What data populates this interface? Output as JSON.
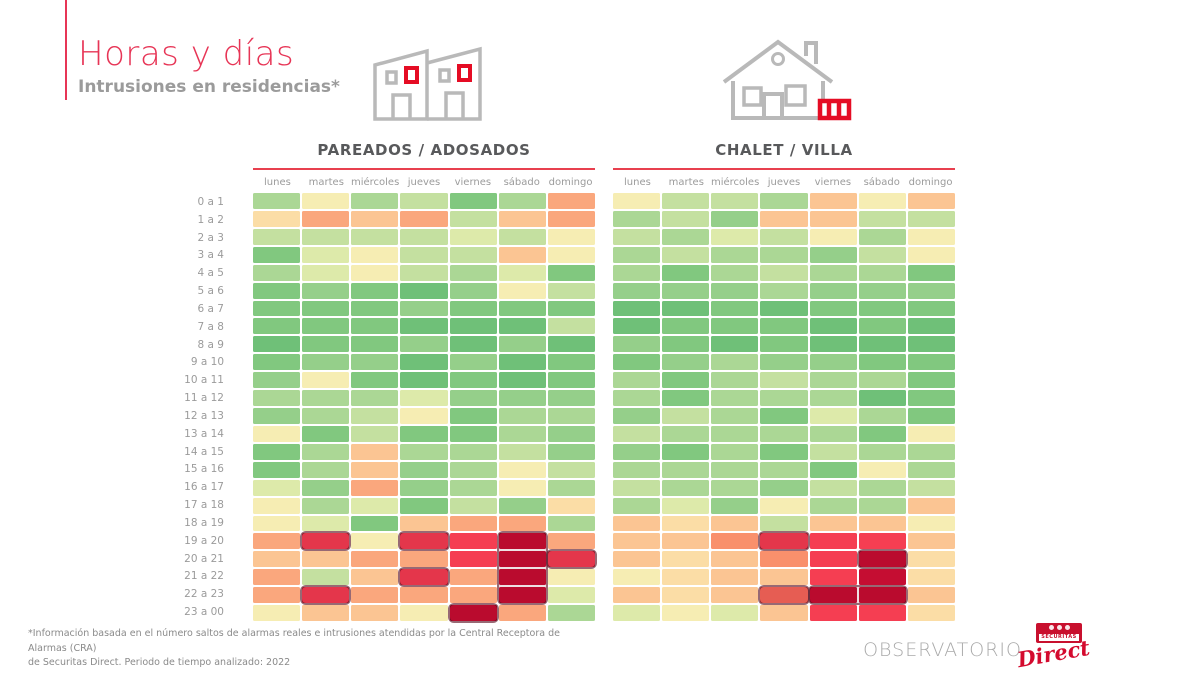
{
  "page": {
    "title": "Horas y días",
    "subtitle": "Intrusiones en residencias*",
    "footnote_line1": "*Información basada en el número saltos de alarmas reales e intrusiones atendidas por la Central Receptora de Alarmas (CRA)",
    "footnote_line2": "de Securitas Direct. Periodo de tiempo analizado: 2022",
    "brand": {
      "observatorio": "OBSERVATORIO",
      "securitas": "SECURITAS",
      "direct": "Direct"
    }
  },
  "colors": {
    "accent_pink_red": "#e73556",
    "rule_red": "#e8404f",
    "icon_red": "#e50c24",
    "icon_gray": "#b9b9b9",
    "chart_title_gray": "#58595b",
    "label_gray": "#9b9b9b",
    "footnote_gray": "#8a8a8a",
    "brand_red": "#c8102e"
  },
  "chart_data": [
    {
      "type": "heatmap",
      "title": "PAREADOS / ADOSADOS",
      "x_labels": [
        "lunes",
        "martes",
        "miércoles",
        "jueves",
        "viernes",
        "sábado",
        "domingo"
      ],
      "y_labels": [
        "0 a 1",
        "1 a 2",
        "2 a 3",
        "3 a 4",
        "4 a 5",
        "5 a 6",
        "6 a 7",
        "7 a 8",
        "8 a 9",
        "9 a 10",
        "10 a 11",
        "11 a 12",
        "12 a 13",
        "13 a 14",
        "14 a 15",
        "15 a 16",
        "16 a 17",
        "17 a 18",
        "18 a 19",
        "19 a 20",
        "20 a 21",
        "21 a 22",
        "22 a 23",
        "23 a 00"
      ],
      "palette": [
        "#6fc078",
        "#81c87f",
        "#95cf8a",
        "#abd795",
        "#c4e0a0",
        "#ddeaaa",
        "#f6edb3",
        "#fbdda6",
        "#fbc593",
        "#faa77d",
        "#f9906c",
        "#f76a5c",
        "#f53e52",
        "#c50d32"
      ],
      "palette_note": "values are palette indices: 0 = lowest intrusion intensity (green) … 13 = highest (dark red)",
      "values": [
        [
          3,
          6,
          3,
          4,
          1,
          3,
          9
        ],
        [
          7,
          9,
          8,
          9,
          4,
          8,
          9
        ],
        [
          4,
          4,
          4,
          4,
          5,
          4,
          6
        ],
        [
          1,
          5,
          6,
          4,
          4,
          8,
          6
        ],
        [
          3,
          5,
          6,
          4,
          3,
          5,
          1
        ],
        [
          1,
          2,
          1,
          0,
          2,
          6,
          4
        ],
        [
          1,
          1,
          1,
          2,
          1,
          1,
          1
        ],
        [
          1,
          1,
          1,
          0,
          0,
          0,
          4
        ],
        [
          0,
          1,
          1,
          2,
          0,
          2,
          0
        ],
        [
          1,
          2,
          2,
          0,
          2,
          0,
          1
        ],
        [
          2,
          6,
          1,
          0,
          1,
          0,
          1
        ],
        [
          3,
          3,
          3,
          5,
          2,
          2,
          2
        ],
        [
          2,
          3,
          4,
          6,
          1,
          3,
          3
        ],
        [
          6,
          1,
          4,
          1,
          1,
          3,
          2
        ],
        [
          1,
          3,
          8,
          3,
          3,
          4,
          2
        ],
        [
          1,
          3,
          8,
          2,
          3,
          6,
          4
        ],
        [
          5,
          2,
          9,
          2,
          3,
          6,
          3
        ],
        [
          6,
          3,
          5,
          1,
          4,
          2,
          7
        ],
        [
          6,
          5,
          1,
          8,
          9,
          9,
          3
        ],
        [
          9,
          12,
          6,
          12,
          12,
          13,
          9
        ],
        [
          8,
          8,
          9,
          9,
          12,
          13,
          12
        ],
        [
          9,
          4,
          8,
          12,
          9,
          13,
          6
        ],
        [
          9,
          12,
          9,
          9,
          9,
          13,
          5
        ],
        [
          6,
          8,
          8,
          6,
          13,
          9,
          3
        ]
      ],
      "highlights": [
        {
          "r": 19,
          "c": 1,
          "rs": 1,
          "cs": 1
        },
        {
          "r": 19,
          "c": 3,
          "rs": 1,
          "cs": 1
        },
        {
          "r": 19,
          "c": 5,
          "rs": 4,
          "cs": 1
        },
        {
          "r": 20,
          "c": 6,
          "rs": 1,
          "cs": 1
        },
        {
          "r": 21,
          "c": 3,
          "rs": 1,
          "cs": 1
        },
        {
          "r": 22,
          "c": 1,
          "rs": 1,
          "cs": 1
        },
        {
          "r": 23,
          "c": 4,
          "rs": 1,
          "cs": 1
        }
      ]
    },
    {
      "type": "heatmap",
      "title": "CHALET / VILLA",
      "x_labels": [
        "lunes",
        "martes",
        "miércoles",
        "jueves",
        "viernes",
        "sábado",
        "domingo"
      ],
      "y_labels": [
        "0 a 1",
        "1 a 2",
        "2 a 3",
        "3 a 4",
        "4 a 5",
        "5 a 6",
        "6 a 7",
        "7 a 8",
        "8 a 9",
        "9 a 10",
        "10 a 11",
        "11 a 12",
        "12 a 13",
        "13 a 14",
        "14 a 15",
        "15 a 16",
        "16 a 17",
        "17 a 18",
        "18 a 19",
        "19 a 20",
        "20 a 21",
        "21 a 22",
        "22 a 23",
        "23 a 00"
      ],
      "palette": [
        "#6fc078",
        "#81c87f",
        "#95cf8a",
        "#abd795",
        "#c4e0a0",
        "#ddeaaa",
        "#f6edb3",
        "#fbdda6",
        "#fbc593",
        "#faa77d",
        "#f9906c",
        "#f76a5c",
        "#f53e52",
        "#c50d32"
      ],
      "palette_note": "values are palette indices: 0 = lowest intrusion intensity (green) … 13 = highest (dark red)",
      "values": [
        [
          6,
          4,
          4,
          3,
          8,
          6,
          8
        ],
        [
          3,
          4,
          2,
          8,
          8,
          4,
          4
        ],
        [
          4,
          3,
          5,
          4,
          6,
          3,
          6
        ],
        [
          3,
          4,
          3,
          3,
          2,
          4,
          6
        ],
        [
          3,
          1,
          3,
          4,
          3,
          3,
          1
        ],
        [
          2,
          2,
          2,
          3,
          2,
          2,
          2
        ],
        [
          0,
          0,
          1,
          0,
          1,
          1,
          1
        ],
        [
          0,
          1,
          1,
          1,
          0,
          1,
          0
        ],
        [
          2,
          1,
          0,
          1,
          0,
          0,
          0
        ],
        [
          1,
          2,
          3,
          2,
          2,
          1,
          1
        ],
        [
          3,
          1,
          3,
          4,
          3,
          3,
          1
        ],
        [
          3,
          1,
          3,
          3,
          3,
          0,
          1
        ],
        [
          2,
          4,
          3,
          1,
          5,
          3,
          1
        ],
        [
          4,
          3,
          3,
          3,
          3,
          1,
          6
        ],
        [
          2,
          1,
          3,
          1,
          4,
          3,
          3
        ],
        [
          3,
          3,
          3,
          3,
          1,
          6,
          3
        ],
        [
          4,
          3,
          3,
          2,
          4,
          3,
          4
        ],
        [
          3,
          5,
          2,
          6,
          3,
          3,
          8
        ],
        [
          8,
          7,
          8,
          4,
          8,
          8,
          6
        ],
        [
          8,
          8,
          10,
          12,
          12,
          12,
          8
        ],
        [
          8,
          7,
          8,
          10,
          12,
          13,
          7
        ],
        [
          6,
          7,
          8,
          8,
          12,
          13,
          7
        ],
        [
          8,
          7,
          8,
          11,
          13,
          13,
          8
        ],
        [
          5,
          6,
          5,
          8,
          12,
          12,
          7
        ]
      ],
      "highlights": [
        {
          "r": 19,
          "c": 3,
          "rs": 1,
          "cs": 1
        },
        {
          "r": 20,
          "c": 5,
          "rs": 1,
          "cs": 1
        },
        {
          "r": 22,
          "c": 3,
          "rs": 1,
          "cs": 1
        },
        {
          "r": 22,
          "c": 4,
          "rs": 1,
          "cs": 2
        }
      ]
    }
  ]
}
